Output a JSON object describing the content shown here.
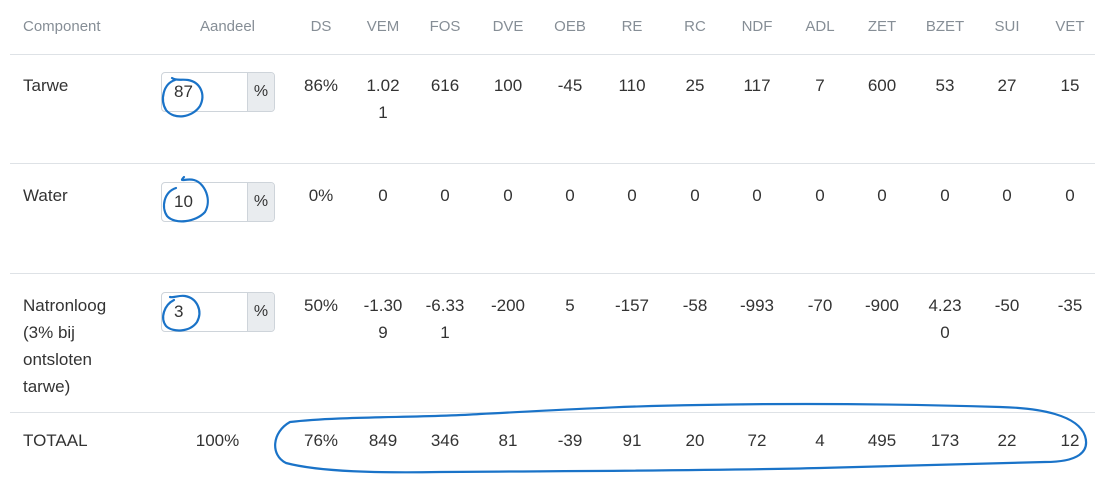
{
  "columns": {
    "component": "Component",
    "aandeel": "Aandeel",
    "nutrients": [
      "DS",
      "VEM",
      "FOS",
      "DVE",
      "OEB",
      "RE",
      "RC",
      "NDF",
      "ADL",
      "ZET",
      "BZET",
      "SUI",
      "VET"
    ]
  },
  "unit_label": "%",
  "rows": [
    {
      "name": "Tarwe",
      "aandeel": "87",
      "values": [
        "86%",
        "1.021",
        "616",
        "100",
        "-45",
        "110",
        "25",
        "117",
        "7",
        "600",
        "53",
        "27",
        "15"
      ]
    },
    {
      "name": "Water",
      "aandeel": "10",
      "values": [
        "0%",
        "0",
        "0",
        "0",
        "0",
        "0",
        "0",
        "0",
        "0",
        "0",
        "0",
        "0",
        "0"
      ]
    },
    {
      "name": "Natronloog (3% bij ontsloten tarwe)",
      "aandeel": "3",
      "values": [
        "50%",
        "-1.309",
        "-6.331",
        "-200",
        "5",
        "-157",
        "-58",
        "-993",
        "-70",
        "-900",
        "4.230",
        "-50",
        "-35"
      ]
    }
  ],
  "total": {
    "label": "TOTAAL",
    "aandeel": "100%",
    "values": [
      "76%",
      "849",
      "346",
      "81",
      "-39",
      "91",
      "20",
      "72",
      "4",
      "495",
      "173",
      "22",
      "12"
    ]
  },
  "annotation_color": "#1a73c8"
}
